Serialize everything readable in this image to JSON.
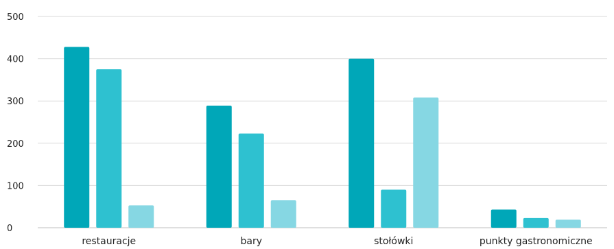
{
  "chart_data": {
    "type": "bar",
    "categories": [
      "restauracje",
      "bary",
      "stołówki",
      "punkty gastronomiczne"
    ],
    "series": [
      {
        "values": [
          428,
          289,
          400,
          43
        ],
        "color": "#00a7b8"
      },
      {
        "values": [
          375,
          223,
          90,
          23
        ],
        "color": "#2ec1d0"
      },
      {
        "values": [
          53,
          65,
          308,
          19
        ],
        "color": "#86d7e3"
      }
    ],
    "yticks": [
      0,
      100,
      200,
      300,
      400,
      500
    ],
    "ylim": [
      0,
      500
    ],
    "grid": true,
    "title": "",
    "xlabel": "",
    "ylabel": ""
  }
}
